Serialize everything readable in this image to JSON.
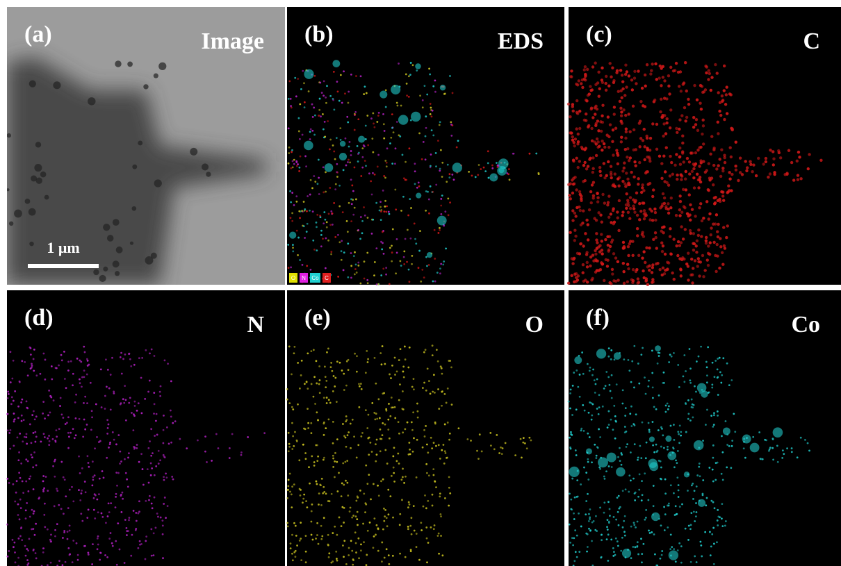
{
  "panels": [
    {
      "label": "(a)",
      "title": "Image"
    },
    {
      "label": "(b)",
      "title": "EDS"
    },
    {
      "label": "(c)",
      "title": "C"
    },
    {
      "label": "(d)",
      "title": "N"
    },
    {
      "label": "(e)",
      "title": "O"
    },
    {
      "label": "(f)",
      "title": "Co"
    }
  ],
  "scale_bar": "1 μm",
  "legend": [
    "O",
    "N",
    "Co",
    "C"
  ]
}
